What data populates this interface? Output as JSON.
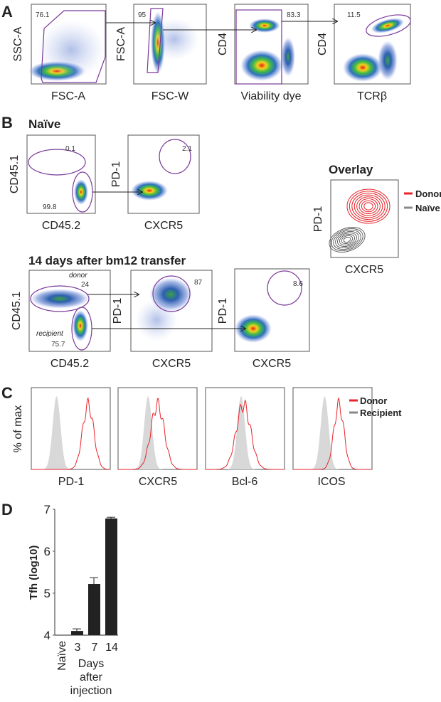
{
  "panels": {
    "A": {
      "label": "A",
      "plots": [
        {
          "ylabel": "SSC-A",
          "xlabel": "FSC-A",
          "gate_value": "76.1"
        },
        {
          "ylabel": "FSC-A",
          "xlabel": "FSC-W",
          "gate_value": "95"
        },
        {
          "ylabel": "CD4",
          "xlabel": "Viability dye",
          "gate_value": "83.3"
        },
        {
          "ylabel": "CD4",
          "xlabel": "TCRβ",
          "gate_value": "11.5"
        }
      ]
    },
    "B": {
      "label": "B",
      "naive_title": "Naïve",
      "naive_plots": [
        {
          "ylabel": "CD45.1",
          "xlabel": "CD45.2",
          "gate_values": [
            "0.1",
            "99.8"
          ]
        },
        {
          "ylabel": "PD-1",
          "xlabel": "CXCR5",
          "gate_value": "2.1"
        }
      ],
      "overlay": {
        "title": "Overlay",
        "ylabel": "PD-1",
        "xlabel": "CXCR5",
        "legend": [
          {
            "name": "Donor",
            "color": "#e8232a"
          },
          {
            "name": "Naïve",
            "color": "#888888"
          }
        ]
      },
      "transfer_title": "14 days after bm12 transfer",
      "transfer_plots": [
        {
          "ylabel": "CD45.1",
          "xlabel": "CD45.2",
          "donor_label": "donor",
          "donor_value": "24",
          "recipient_label": "recipient",
          "recipient_value": "75.7"
        },
        {
          "ylabel": "PD-1",
          "xlabel": "CXCR5",
          "gate_value": "87"
        },
        {
          "ylabel": "PD-1",
          "xlabel": "CXCR5",
          "gate_value": "8.6"
        }
      ]
    },
    "C": {
      "label": "C",
      "ylabel": "% of max",
      "xlabels": [
        "PD-1",
        "CXCR5",
        "Bcl-6",
        "ICOS"
      ],
      "legend": [
        {
          "name": "Donor",
          "color": "#e8232a"
        },
        {
          "name": "Recipient",
          "color": "#888888"
        }
      ]
    },
    "D": {
      "label": "D"
    }
  },
  "chart_data": {
    "type": "bar",
    "ylabel": "Tfh (log10)",
    "xlabel": "Days after injection",
    "categories": [
      "Naïve",
      "3",
      "7",
      "14"
    ],
    "values": [
      4.0,
      4.1,
      5.22,
      6.78
    ],
    "errors": [
      0,
      0.05,
      0.15,
      0.03
    ],
    "ylim": [
      4,
      7
    ],
    "yticks": [
      "4",
      "5",
      "6",
      "7"
    ],
    "bar_color": "#222222"
  }
}
